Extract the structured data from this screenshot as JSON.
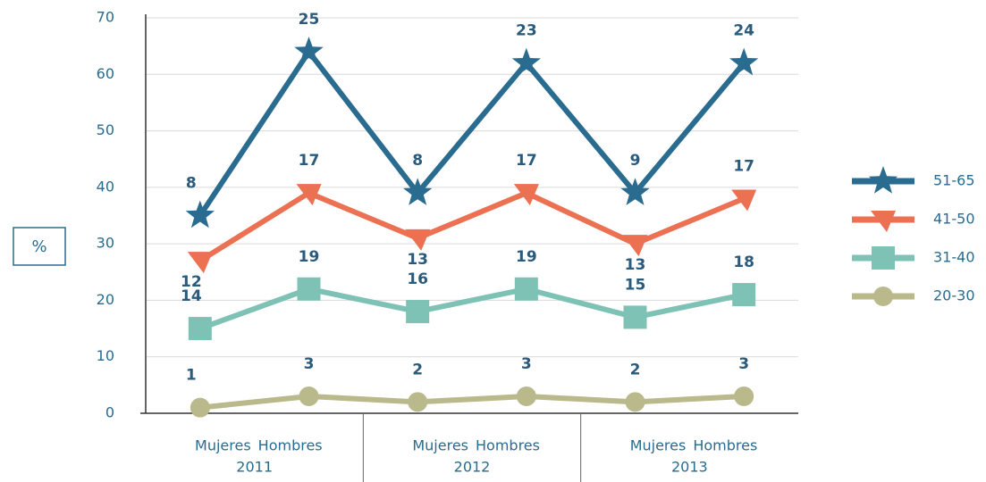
{
  "chart_data": {
    "type": "stacked-line",
    "ylabel": "%",
    "categories": [
      "Mujeres",
      "Hombres",
      "Mujeres",
      "Hombres",
      "Mujeres",
      "Hombres"
    ],
    "groups": [
      "2011",
      "2012",
      "2013"
    ],
    "ylim": [
      0,
      70
    ],
    "yticks": [
      0,
      10,
      20,
      30,
      40,
      50,
      60,
      70
    ],
    "grid": true,
    "series": [
      {
        "name": "20-30",
        "color": "#b9b98b",
        "marker": "circle",
        "values": [
          1,
          3,
          2,
          3,
          2,
          3
        ]
      },
      {
        "name": "31-40",
        "color": "#7dc2b4",
        "marker": "square",
        "values": [
          14,
          19,
          16,
          19,
          15,
          18
        ]
      },
      {
        "name": "41-50",
        "color": "#ec7153",
        "marker": "triangle",
        "values": [
          12,
          17,
          13,
          17,
          13,
          17
        ]
      },
      {
        "name": "51-65",
        "color": "#2a6b90",
        "marker": "star",
        "values": [
          8,
          25,
          8,
          23,
          9,
          24
        ]
      }
    ]
  }
}
